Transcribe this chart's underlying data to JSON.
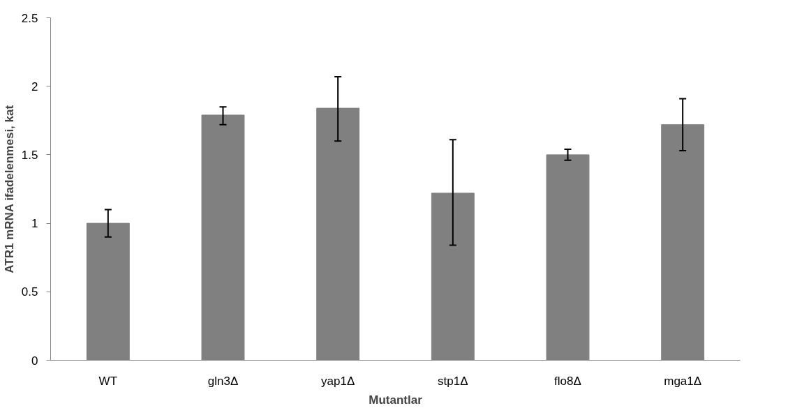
{
  "chart_data": {
    "type": "bar",
    "xlabel": "Mutantlar",
    "ylabel": "ATR1 mRNA ifadelenmesi, kat",
    "categories": [
      "WT",
      "gln3Δ",
      "yap1Δ",
      "stp1Δ",
      "flo8Δ",
      "mga1Δ"
    ],
    "values": [
      1.0,
      1.79,
      1.84,
      1.22,
      1.5,
      1.72
    ],
    "errors": [
      [
        0.9,
        1.1
      ],
      [
        1.72,
        1.85
      ],
      [
        1.6,
        2.07
      ],
      [
        0.84,
        1.61
      ],
      [
        1.46,
        1.54
      ],
      [
        1.53,
        1.91
      ]
    ],
    "color": "#808080",
    "ylim": [
      0,
      2.5
    ],
    "yticks": [
      0,
      0.5,
      1,
      1.5,
      2,
      2.5
    ],
    "grid": false
  }
}
